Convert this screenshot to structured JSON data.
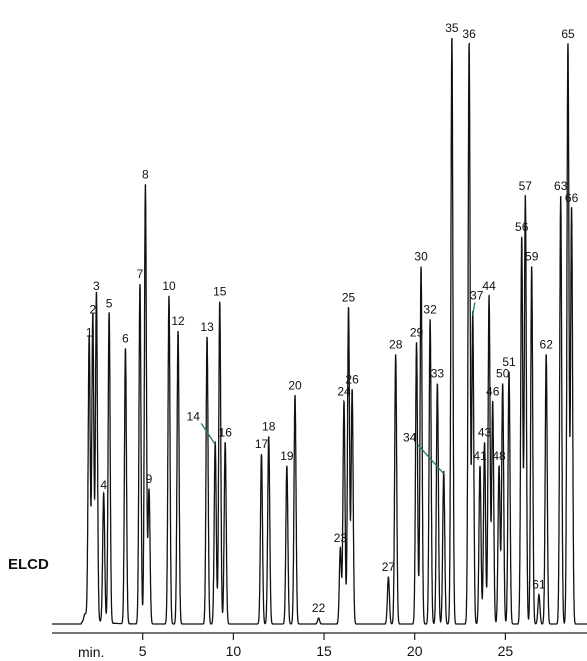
{
  "chart_data": {
    "type": "line",
    "detector_label": "ELCD",
    "x_unit_label": "min.",
    "xlim": [
      0,
      29.5
    ],
    "x_ticks": [
      5,
      10,
      15,
      20,
      25
    ],
    "x_tick_labels": [
      "5",
      "10",
      "15",
      "20",
      "25"
    ],
    "y_axis_shown": false,
    "peak_height_scale": "relative, 100 = tallest",
    "peaks": [
      {
        "label": "1",
        "rt": 2.05,
        "height": 48
      },
      {
        "label": "2",
        "rt": 2.25,
        "height": 52
      },
      {
        "label": "3",
        "rt": 2.45,
        "height": 56
      },
      {
        "label": "4",
        "rt": 2.85,
        "height": 22
      },
      {
        "label": "5",
        "rt": 3.15,
        "height": 53
      },
      {
        "label": "6",
        "rt": 4.05,
        "height": 47
      },
      {
        "label": "7",
        "rt": 4.85,
        "height": 58
      },
      {
        "label": "8",
        "rt": 5.15,
        "height": 75
      },
      {
        "label": "9",
        "rt": 5.35,
        "height": 23
      },
      {
        "label": "10",
        "rt": 6.45,
        "height": 56
      },
      {
        "label": "12",
        "rt": 6.95,
        "height": 50
      },
      {
        "label": "13",
        "rt": 8.55,
        "height": 49
      },
      {
        "label": "14",
        "rt": 9.0,
        "height": 31
      },
      {
        "label": "15",
        "rt": 9.25,
        "height": 55
      },
      {
        "label": "16",
        "rt": 9.55,
        "height": 31
      },
      {
        "label": "17",
        "rt": 11.55,
        "height": 29
      },
      {
        "label": "18",
        "rt": 11.95,
        "height": 32
      },
      {
        "label": "19",
        "rt": 12.95,
        "height": 27
      },
      {
        "label": "20",
        "rt": 13.4,
        "height": 39
      },
      {
        "label": "22",
        "rt": 14.7,
        "height": 1
      },
      {
        "label": "23",
        "rt": 15.9,
        "height": 13
      },
      {
        "label": "24",
        "rt": 16.1,
        "height": 38
      },
      {
        "label": "25",
        "rt": 16.35,
        "height": 54
      },
      {
        "label": "26",
        "rt": 16.55,
        "height": 40
      },
      {
        "label": "27",
        "rt": 18.55,
        "height": 8
      },
      {
        "label": "28",
        "rt": 18.95,
        "height": 46
      },
      {
        "label": "29",
        "rt": 20.1,
        "height": 48
      },
      {
        "label": "30",
        "rt": 20.35,
        "height": 61
      },
      {
        "label": "32",
        "rt": 20.85,
        "height": 52
      },
      {
        "label": "33",
        "rt": 21.25,
        "height": 41
      },
      {
        "label": "34",
        "rt": 21.6,
        "height": 26
      },
      {
        "label": "35",
        "rt": 22.05,
        "height": 100
      },
      {
        "label": "36",
        "rt": 23.0,
        "height": 99
      },
      {
        "label": "37",
        "rt": 23.2,
        "height": 53
      },
      {
        "label": "41",
        "rt": 23.6,
        "height": 27
      },
      {
        "label": "43",
        "rt": 23.85,
        "height": 31
      },
      {
        "label": "44",
        "rt": 24.1,
        "height": 56
      },
      {
        "label": "46",
        "rt": 24.3,
        "height": 38
      },
      {
        "label": "48",
        "rt": 24.65,
        "height": 27
      },
      {
        "label": "50",
        "rt": 24.85,
        "height": 41
      },
      {
        "label": "51",
        "rt": 25.2,
        "height": 43
      },
      {
        "label": "56",
        "rt": 25.9,
        "height": 66
      },
      {
        "label": "57",
        "rt": 26.1,
        "height": 73
      },
      {
        "label": "59",
        "rt": 26.45,
        "height": 61
      },
      {
        "label": "61",
        "rt": 26.85,
        "height": 5
      },
      {
        "label": "62",
        "rt": 27.25,
        "height": 46
      },
      {
        "label": "63",
        "rt": 28.05,
        "height": 73
      },
      {
        "label": "65",
        "rt": 28.45,
        "height": 99
      },
      {
        "label": "66",
        "rt": 28.65,
        "height": 71
      }
    ]
  }
}
